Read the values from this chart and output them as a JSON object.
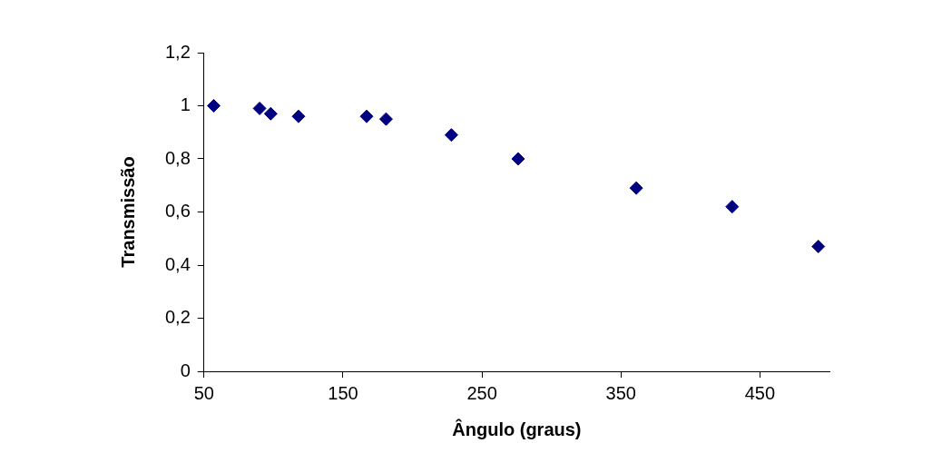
{
  "chart_data": {
    "type": "scatter",
    "xlabel": "Ângulo (graus)",
    "ylabel": "Transmissão",
    "series": [
      {
        "color": "#000080",
        "x": [
          57,
          90,
          98,
          118,
          167,
          181,
          228,
          276,
          361,
          430,
          492
        ],
        "values": [
          1.0,
          0.99,
          0.97,
          0.96,
          0.96,
          0.95,
          0.89,
          0.8,
          0.69,
          0.62,
          0.47
        ]
      }
    ],
    "xlim": [
      50,
      500
    ],
    "xticks": [
      50,
      150,
      250,
      350,
      450
    ],
    "ylim": [
      0,
      1.2
    ],
    "yticks": [
      {
        "value": 0,
        "label": "0"
      },
      {
        "value": 0.2,
        "label": "0,2"
      },
      {
        "value": 0.4,
        "label": "0,4"
      },
      {
        "value": 0.6,
        "label": "0,6"
      },
      {
        "value": 0.8,
        "label": "0,8"
      },
      {
        "value": 1,
        "label": "1"
      },
      {
        "value": 1.2,
        "label": "1,2"
      }
    ],
    "grid": false,
    "legend": false,
    "marker": "diamond"
  }
}
